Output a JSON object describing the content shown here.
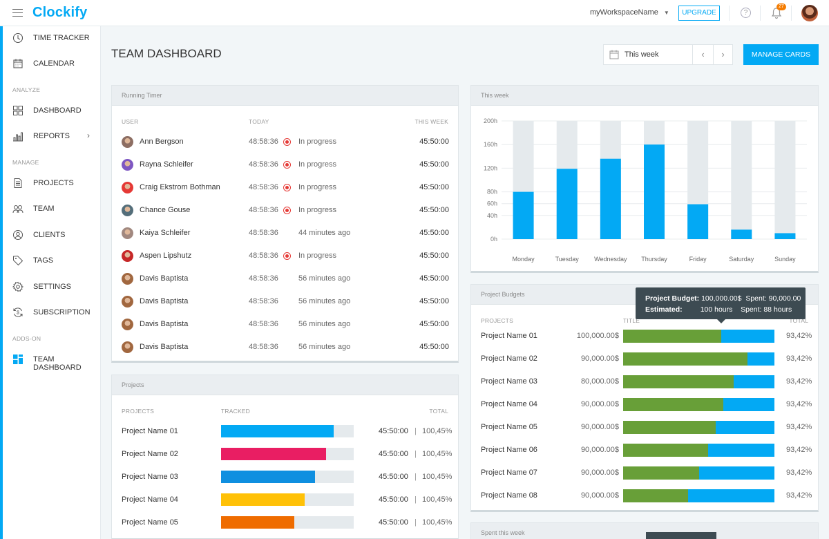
{
  "app": {
    "logo": "Clockify",
    "workspace": "myWorkspaceName",
    "upgrade_label": "UPGRADE",
    "help": "?",
    "notif_count": "27"
  },
  "sidebar": {
    "items": [
      {
        "label": "TIME TRACKER",
        "icon": "clock-icon"
      },
      {
        "label": "CALENDAR",
        "icon": "calendar-icon"
      },
      {
        "label": "DASHBOARD",
        "icon": "dashboard-icon"
      },
      {
        "label": "REPORTS",
        "icon": "reports-icon"
      },
      {
        "label": "PROJECTS",
        "icon": "projects-icon"
      },
      {
        "label": "TEAM",
        "icon": "team-icon"
      },
      {
        "label": "CLIENTS",
        "icon": "clients-icon"
      },
      {
        "label": "TAGS",
        "icon": "tag-icon"
      },
      {
        "label": "SETTINGS",
        "icon": "gear-icon"
      },
      {
        "label": "SUBSCRIPTION",
        "icon": "subscription-icon"
      },
      {
        "label": "TEAM DASHBOARD",
        "icon": "team-dashboard-icon"
      }
    ],
    "sections": {
      "analyze": "ANALYZE",
      "manage": "MANAGE",
      "addons": "ADDS-ON"
    }
  },
  "page": {
    "title": "TEAM DASHBOARD",
    "week_label": "This week",
    "manage_cards": "MANAGE CARDS"
  },
  "running_timer": {
    "title": "Running Timer",
    "columns": {
      "user": "USER",
      "today": "TODAY",
      "week": "THIS WEEK"
    },
    "rows": [
      {
        "name": "Ann Bergson",
        "today": "48:58:36",
        "status": "In progress",
        "recording": true,
        "week": "45:50:00"
      },
      {
        "name": "Rayna Schleifer",
        "today": "48:58:36",
        "status": "In progress",
        "recording": true,
        "week": "45:50:00"
      },
      {
        "name": "Craig Ekstrom Bothman",
        "today": "48:58:36",
        "status": "In progress",
        "recording": true,
        "week": "45:50:00"
      },
      {
        "name": "Chance Gouse",
        "today": "48:58:36",
        "status": "In progress",
        "recording": true,
        "week": "45:50:00"
      },
      {
        "name": "Kaiya Schleifer",
        "today": "48:58:36",
        "status": "44 minutes ago",
        "recording": false,
        "week": "45:50:00"
      },
      {
        "name": "Aspen Lipshutz",
        "today": "48:58:36",
        "status": "In progress",
        "recording": true,
        "week": "45:50:00"
      },
      {
        "name": "Davis Baptista",
        "today": "48:58:36",
        "status": "56 minutes ago",
        "recording": false,
        "week": "45:50:00"
      },
      {
        "name": "Davis Baptista",
        "today": "48:58:36",
        "status": "56 minutes ago",
        "recording": false,
        "week": "45:50:00"
      },
      {
        "name": "Davis Baptista",
        "today": "48:58:36",
        "status": "56 minutes ago",
        "recording": false,
        "week": "45:50:00"
      },
      {
        "name": "Davis Baptista",
        "today": "48:58:36",
        "status": "56 minutes ago",
        "recording": false,
        "week": "45:50:00"
      }
    ]
  },
  "projects_card": {
    "title": "Projects",
    "columns": {
      "projects": "PROJECTS",
      "tracked": "TRACKED",
      "total": "TOTAL"
    },
    "rows": [
      {
        "name": "Project Name 01",
        "tracked": 0.85,
        "color": "#03a9f4",
        "time": "45:50:00",
        "pct": "100,45%"
      },
      {
        "name": "Project Name 02",
        "tracked": 0.79,
        "color": "#e91e63",
        "time": "45:50:00",
        "pct": "100,45%"
      },
      {
        "name": "Project Name 03",
        "tracked": 0.71,
        "color": "#0f8fe0",
        "time": "45:50:00",
        "pct": "100,45%"
      },
      {
        "name": "Project Name 04",
        "tracked": 0.63,
        "color": "#ffc107",
        "time": "45:50:00",
        "pct": "100,45%"
      },
      {
        "name": "Project Name 05",
        "tracked": 0.55,
        "color": "#ef6c00",
        "time": "45:50:00",
        "pct": "100,45%"
      }
    ]
  },
  "chart_data": {
    "type": "bar",
    "title": "This week",
    "categories": [
      "Monday",
      "Tuesday",
      "Wednesday",
      "Thursday",
      "Friday",
      "Saturday",
      "Sunday"
    ],
    "series": [
      {
        "values": [
          80,
          119,
          136,
          160,
          59,
          16,
          10
        ]
      }
    ],
    "ylim": [
      0,
      200
    ],
    "yticks": [
      "0h",
      "40h",
      "60h",
      "80h",
      "120h",
      "160h",
      "200h"
    ],
    "grid": true,
    "colors": {
      "bar": "#03a9f4",
      "background_bar": "#e5eaed"
    }
  },
  "budgets": {
    "title": "Project Budgets",
    "columns": {
      "projects": "PROJECTS",
      "title": "TITLE",
      "total": "TOTAL"
    },
    "rows": [
      {
        "name": "Project Name 01",
        "amount": "100,000.00$",
        "spent": 0.65,
        "pct": "93,42%"
      },
      {
        "name": "Project Name 02",
        "amount": "90,000.00$",
        "spent": 0.82,
        "pct": "93,42%"
      },
      {
        "name": "Project Name 03",
        "amount": "80,000.00$",
        "spent": 0.73,
        "pct": "93,42%"
      },
      {
        "name": "Project Name 04",
        "amount": "90,000.00$",
        "spent": 0.66,
        "pct": "93,42%"
      },
      {
        "name": "Project Name 05",
        "amount": "90,000.00$",
        "spent": 0.61,
        "pct": "93,42%"
      },
      {
        "name": "Project Name 06",
        "amount": "90,000.00$",
        "spent": 0.56,
        "pct": "93,42%"
      },
      {
        "name": "Project Name 07",
        "amount": "90,000.00$",
        "spent": 0.5,
        "pct": "93,42%"
      },
      {
        "name": "Project Name 08",
        "amount": "90,000.00$",
        "spent": 0.43,
        "pct": "93,42%"
      }
    ],
    "tooltip": {
      "budget_label": "Project Budget:",
      "budget_value": "100,000.00$",
      "spent_label": "Spent:",
      "spent_value": "90,000.00",
      "estimated_label": "Estimated:",
      "estimated_value": "100 hours",
      "spent2_label": "Spent:",
      "spent2_value": "88 hours"
    }
  },
  "spent_card": {
    "title": "Spent this week"
  },
  "colors": {
    "accent": "#03a9f4",
    "recording": "#e53935",
    "budget_spent": "#689f38"
  }
}
